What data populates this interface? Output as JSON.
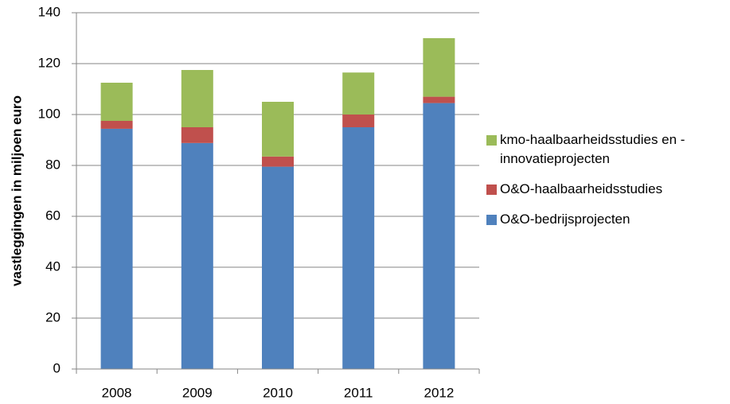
{
  "chart_data": {
    "type": "stacked_bar",
    "y_label": "vastleggingen in miljoen euro",
    "categories": [
      "2008",
      "2009",
      "2010",
      "2011",
      "2012"
    ],
    "series": [
      {
        "name": "O&O-bedrijsprojecten",
        "color": "#4f81bd",
        "values": [
          94.4,
          88.8,
          79.5,
          95,
          104.5
        ]
      },
      {
        "name": "O&O-haalbaarheidsstudies",
        "color": "#c0504d",
        "values": [
          3.1,
          6.2,
          4,
          5,
          2.5
        ]
      },
      {
        "name": "kmo-haalbaarheidsstudies en -innovatieprojecten",
        "color": "#9bbb59",
        "values": [
          15,
          22.5,
          21.5,
          16.5,
          23
        ]
      }
    ],
    "ylim": [
      0,
      140
    ],
    "yticks": [
      0,
      20,
      40,
      60,
      80,
      100,
      120,
      140
    ],
    "grid": true,
    "legend": "right"
  }
}
